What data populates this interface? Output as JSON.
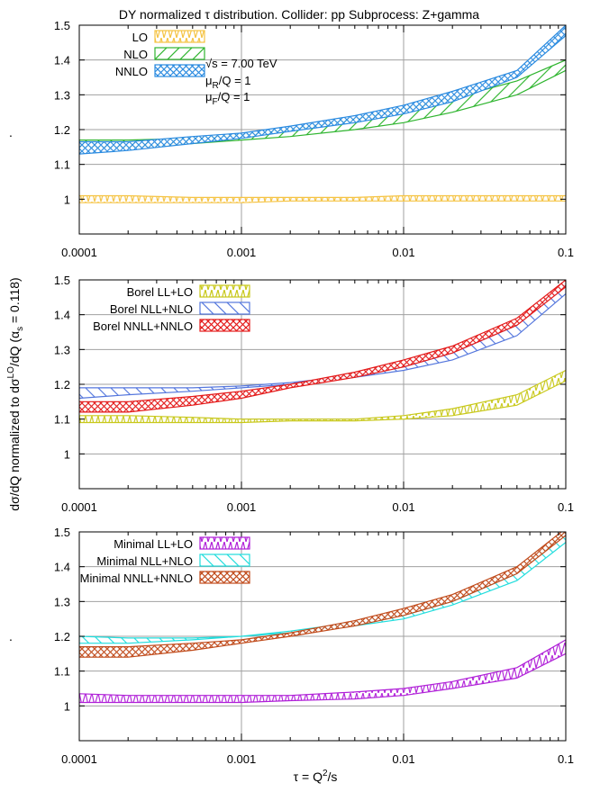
{
  "title": "DY normalized τ distribution.   Collider: pp   Subprocess: Z+gamma",
  "ylabel_main": "dσ/dQ  normalized to  dσ",
  "ylabel_sup": "LO",
  "ylabel_tail": "/dQ (α",
  "ylabel_sub": "s",
  "ylabel_end": " = 0.118)",
  "xlabel_main": "τ = Q",
  "xlabel_sup": "2",
  "xlabel_end": "/s",
  "dot_label": ".",
  "annotations": {
    "sqrt_s": "√s = 7.00 TeV",
    "muR_a": "μ",
    "muR_sub": "R",
    "muR_b": "/Q = 1",
    "muF_a": "μ",
    "muF_sub": "F",
    "muF_b": "/Q = 1"
  },
  "chart_data": [
    {
      "type": "area",
      "xscale": "log",
      "xlim": [
        0.0001,
        0.1
      ],
      "ylim": [
        0.9,
        1.5
      ],
      "xticks": [
        "0.0001",
        "0.001",
        "0.01",
        "0.1"
      ],
      "yticks": [
        "1",
        "1.1",
        "1.2",
        "1.3",
        "1.4",
        "1.5"
      ],
      "x": [
        0.0001,
        0.0002,
        0.0005,
        0.001,
        0.002,
        0.005,
        0.01,
        0.02,
        0.05,
        0.1
      ],
      "series": [
        {
          "name": "LO",
          "color": "#f5c342",
          "hatch": "zigzag",
          "lower": [
            0.99,
            0.99,
            0.99,
            0.99,
            0.995,
            0.995,
            0.995,
            0.995,
            0.995,
            0.995
          ],
          "upper": [
            1.01,
            1.01,
            1.005,
            1.005,
            1.005,
            1.005,
            1.01,
            1.01,
            1.01,
            1.01
          ]
        },
        {
          "name": "NLO",
          "color": "#2fb52f",
          "hatch": "slash",
          "lower": [
            1.15,
            1.15,
            1.16,
            1.17,
            1.18,
            1.2,
            1.22,
            1.25,
            1.3,
            1.37
          ],
          "upper": [
            1.17,
            1.17,
            1.175,
            1.185,
            1.2,
            1.23,
            1.26,
            1.29,
            1.34,
            1.4
          ]
        },
        {
          "name": "NNLO",
          "color": "#2b8be0",
          "hatch": "cross",
          "lower": [
            1.13,
            1.14,
            1.16,
            1.175,
            1.195,
            1.22,
            1.245,
            1.28,
            1.35,
            1.47
          ],
          "upper": [
            1.165,
            1.165,
            1.18,
            1.19,
            1.21,
            1.24,
            1.27,
            1.31,
            1.37,
            1.5
          ]
        }
      ]
    },
    {
      "type": "area",
      "xscale": "log",
      "xlim": [
        0.0001,
        0.1
      ],
      "ylim": [
        0.9,
        1.5
      ],
      "xticks": [
        "0.0001",
        "0.001",
        "0.01",
        "0.1"
      ],
      "yticks": [
        "1",
        "1.1",
        "1.2",
        "1.3",
        "1.4",
        "1.5"
      ],
      "x": [
        0.0001,
        0.0002,
        0.0005,
        0.001,
        0.002,
        0.005,
        0.01,
        0.02,
        0.05,
        0.1
      ],
      "series": [
        {
          "name": "Borel LL+LO",
          "color": "#c8c81a",
          "hatch": "zigzag",
          "lower": [
            1.09,
            1.09,
            1.09,
            1.09,
            1.095,
            1.095,
            1.1,
            1.11,
            1.14,
            1.21
          ],
          "upper": [
            1.11,
            1.11,
            1.105,
            1.1,
            1.1,
            1.1,
            1.11,
            1.13,
            1.17,
            1.24
          ]
        },
        {
          "name": "Borel NLL+NLO",
          "color": "#5577dd",
          "hatch": "backslash",
          "lower": [
            1.16,
            1.17,
            1.18,
            1.19,
            1.2,
            1.22,
            1.24,
            1.27,
            1.34,
            1.46
          ],
          "upper": [
            1.19,
            1.19,
            1.19,
            1.195,
            1.205,
            1.225,
            1.25,
            1.29,
            1.37,
            1.49
          ]
        },
        {
          "name": "Borel NNLL+NNLO",
          "color": "#e41a1a",
          "hatch": "cross",
          "lower": [
            1.12,
            1.12,
            1.14,
            1.16,
            1.19,
            1.22,
            1.25,
            1.29,
            1.37,
            1.48
          ],
          "upper": [
            1.15,
            1.15,
            1.165,
            1.18,
            1.2,
            1.235,
            1.27,
            1.31,
            1.39,
            1.5
          ]
        }
      ]
    },
    {
      "type": "area",
      "xscale": "log",
      "xlim": [
        0.0001,
        0.1
      ],
      "ylim": [
        0.9,
        1.5
      ],
      "xticks": [
        "0.0001",
        "0.001",
        "0.01",
        "0.1"
      ],
      "yticks": [
        "1",
        "1.1",
        "1.2",
        "1.3",
        "1.4",
        "1.5"
      ],
      "x": [
        0.0001,
        0.0002,
        0.0005,
        0.001,
        0.002,
        0.005,
        0.01,
        0.02,
        0.05,
        0.1
      ],
      "series": [
        {
          "name": "Minimal LL+LO",
          "color": "#b020d8",
          "hatch": "zigzag",
          "lower": [
            1.01,
            1.01,
            1.01,
            1.01,
            1.015,
            1.02,
            1.03,
            1.05,
            1.08,
            1.15
          ],
          "upper": [
            1.035,
            1.03,
            1.03,
            1.03,
            1.03,
            1.04,
            1.05,
            1.07,
            1.11,
            1.19
          ]
        },
        {
          "name": "Minimal NLL+NLO",
          "color": "#22dddd",
          "hatch": "backslash",
          "lower": [
            1.18,
            1.18,
            1.19,
            1.2,
            1.21,
            1.23,
            1.25,
            1.29,
            1.36,
            1.47
          ],
          "upper": [
            1.2,
            1.195,
            1.195,
            1.2,
            1.215,
            1.24,
            1.26,
            1.3,
            1.38,
            1.5
          ]
        },
        {
          "name": "Minimal NNLL+NNLO",
          "color": "#c04a1a",
          "hatch": "cross",
          "lower": [
            1.14,
            1.14,
            1.16,
            1.18,
            1.2,
            1.23,
            1.26,
            1.3,
            1.38,
            1.49
          ],
          "upper": [
            1.17,
            1.17,
            1.18,
            1.19,
            1.21,
            1.245,
            1.28,
            1.32,
            1.4,
            1.51
          ]
        }
      ]
    }
  ]
}
